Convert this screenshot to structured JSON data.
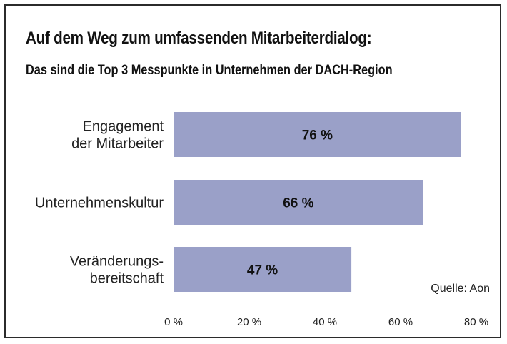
{
  "chart_data": {
    "type": "bar",
    "orientation": "horizontal",
    "title": "Auf dem Weg zum umfassenden Mitarbeiterdialog:",
    "subtitle": "Das sind die Top 3 Messpunkte in Unternehmen der DACH-Region",
    "categories": [
      [
        "Engagement",
        "der Mitarbeiter"
      ],
      [
        "Unternehmenskultur"
      ],
      [
        "Veränderungs-",
        "bereitschaft"
      ]
    ],
    "values": [
      76,
      66,
      47
    ],
    "value_labels": [
      "76 %",
      "66 %",
      "47 %"
    ],
    "xlim": [
      0,
      80
    ],
    "x_ticks": [
      0,
      20,
      40,
      60,
      80
    ],
    "x_tick_labels": [
      "0 %",
      "20 %",
      "40 %",
      "60 %",
      "80 %"
    ],
    "bar_color": "#9aa0c8",
    "grid": false,
    "source": "Quelle: Aon"
  }
}
